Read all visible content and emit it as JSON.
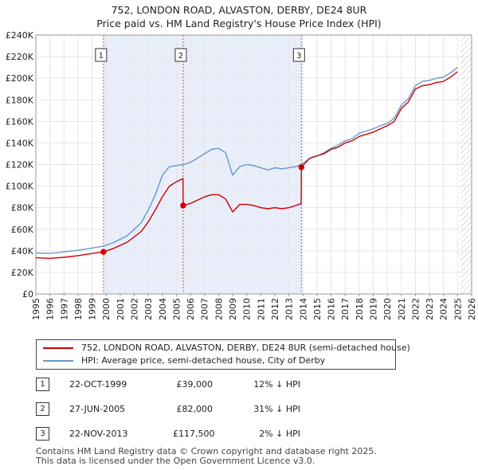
{
  "title": {
    "line1": "752, LONDON ROAD, ALVASTON, DERBY, DE24 8UR",
    "line2": "Price paid vs. HM Land Registry's House Price Index (HPI)"
  },
  "chart_data": {
    "type": "line",
    "title": "752, LONDON ROAD, ALVASTON, DERBY, DE24 8UR — Price paid vs. HM Land Registry's House Price Index (HPI)",
    "xlim": [
      1995,
      2026
    ],
    "ylim": [
      0,
      240000
    ],
    "y_ticks": [
      0,
      20000,
      40000,
      60000,
      80000,
      100000,
      120000,
      140000,
      160000,
      180000,
      200000,
      220000,
      240000
    ],
    "y_tick_labels": [
      "£0",
      "£20K",
      "£40K",
      "£60K",
      "£80K",
      "£100K",
      "£120K",
      "£140K",
      "£160K",
      "£180K",
      "£200K",
      "£220K",
      "£240K"
    ],
    "x_ticks": [
      1995,
      1996,
      1997,
      1998,
      1999,
      2000,
      2001,
      2002,
      2003,
      2004,
      2005,
      2006,
      2007,
      2008,
      2009,
      2010,
      2011,
      2012,
      2013,
      2014,
      2015,
      2016,
      2017,
      2018,
      2019,
      2020,
      2021,
      2022,
      2023,
      2024,
      2025,
      2026
    ],
    "x_tick_labels": [
      "1995",
      "1996",
      "1997",
      "1998",
      "1999",
      "2000",
      "2001",
      "2002",
      "2003",
      "2004",
      "2005",
      "2006",
      "2007",
      "2008",
      "2009",
      "2010",
      "2011",
      "2012",
      "2013",
      "2014",
      "2015",
      "2016",
      "2017",
      "2018",
      "2019",
      "2020",
      "2021",
      "2022",
      "2023",
      "2024",
      "2025",
      "2026"
    ],
    "grid": true,
    "forecast_start": 2025.2,
    "series": [
      {
        "name": "752, LONDON ROAD, ALVASTON, DERBY, DE24 8UR (semi-detached house)",
        "color": "#cc0000",
        "points": [
          [
            1995.0,
            33500
          ],
          [
            1996.0,
            33000
          ],
          [
            1997.0,
            34000
          ],
          [
            1998.0,
            35500
          ],
          [
            1999.0,
            37500
          ],
          [
            1999.81,
            39000
          ],
          [
            2000.5,
            42000
          ],
          [
            2001.5,
            48000
          ],
          [
            2002.5,
            58000
          ],
          [
            2003.0,
            67000
          ],
          [
            2003.5,
            78000
          ],
          [
            2004.0,
            90000
          ],
          [
            2004.5,
            100000
          ],
          [
            2005.0,
            104000
          ],
          [
            2005.47,
            107000
          ],
          [
            2005.48,
            82000
          ],
          [
            2006.0,
            84000
          ],
          [
            2006.5,
            87000
          ],
          [
            2007.0,
            90000
          ],
          [
            2007.5,
            92000
          ],
          [
            2008.0,
            92000
          ],
          [
            2008.5,
            88000
          ],
          [
            2009.0,
            76000
          ],
          [
            2009.5,
            83000
          ],
          [
            2010.0,
            83000
          ],
          [
            2010.5,
            82000
          ],
          [
            2011.0,
            80000
          ],
          [
            2011.5,
            79000
          ],
          [
            2012.0,
            80000
          ],
          [
            2012.5,
            79000
          ],
          [
            2013.0,
            80000
          ],
          [
            2013.5,
            82000
          ],
          [
            2013.88,
            84000
          ],
          [
            2013.89,
            117500
          ],
          [
            2014.5,
            126000
          ],
          [
            2015.0,
            128000
          ],
          [
            2015.5,
            130000
          ],
          [
            2016.0,
            134000
          ],
          [
            2016.5,
            136000
          ],
          [
            2017.0,
            140000
          ],
          [
            2017.5,
            142000
          ],
          [
            2018.0,
            146000
          ],
          [
            2018.5,
            148000
          ],
          [
            2019.0,
            150000
          ],
          [
            2019.5,
            153000
          ],
          [
            2020.0,
            156000
          ],
          [
            2020.5,
            160000
          ],
          [
            2021.0,
            172000
          ],
          [
            2021.5,
            178000
          ],
          [
            2022.0,
            190000
          ],
          [
            2022.5,
            193000
          ],
          [
            2023.0,
            194000
          ],
          [
            2023.5,
            196000
          ],
          [
            2024.0,
            197000
          ],
          [
            2024.5,
            201000
          ],
          [
            2025.0,
            206000
          ]
        ]
      },
      {
        "name": "HPI: Average price, semi-detached house, City of Derby",
        "color": "#6699cc",
        "points": [
          [
            1995.0,
            38000
          ],
          [
            1996.0,
            37500
          ],
          [
            1997.0,
            39000
          ],
          [
            1998.0,
            40500
          ],
          [
            1999.0,
            42500
          ],
          [
            1999.81,
            44300
          ],
          [
            2000.5,
            47500
          ],
          [
            2001.5,
            54000
          ],
          [
            2002.5,
            66000
          ],
          [
            2003.0,
            78000
          ],
          [
            2003.5,
            92000
          ],
          [
            2004.0,
            110000
          ],
          [
            2004.5,
            118000
          ],
          [
            2005.0,
            119000
          ],
          [
            2005.5,
            120000
          ],
          [
            2006.0,
            122000
          ],
          [
            2006.5,
            126000
          ],
          [
            2007.0,
            130000
          ],
          [
            2007.5,
            134000
          ],
          [
            2008.0,
            135000
          ],
          [
            2008.5,
            131000
          ],
          [
            2009.0,
            110000
          ],
          [
            2009.5,
            118000
          ],
          [
            2010.0,
            120000
          ],
          [
            2010.5,
            119000
          ],
          [
            2011.0,
            117000
          ],
          [
            2011.5,
            115000
          ],
          [
            2012.0,
            117000
          ],
          [
            2012.5,
            116000
          ],
          [
            2013.0,
            117000
          ],
          [
            2013.5,
            118000
          ],
          [
            2013.89,
            120000
          ],
          [
            2014.5,
            126000
          ],
          [
            2015.0,
            128000
          ],
          [
            2015.5,
            131000
          ],
          [
            2016.0,
            135000
          ],
          [
            2016.5,
            138000
          ],
          [
            2017.0,
            142000
          ],
          [
            2017.5,
            144000
          ],
          [
            2018.0,
            149000
          ],
          [
            2018.5,
            151000
          ],
          [
            2019.0,
            153000
          ],
          [
            2019.5,
            156000
          ],
          [
            2020.0,
            158000
          ],
          [
            2020.5,
            163000
          ],
          [
            2021.0,
            175000
          ],
          [
            2021.5,
            181000
          ],
          [
            2022.0,
            193000
          ],
          [
            2022.5,
            197000
          ],
          [
            2023.0,
            198000
          ],
          [
            2023.5,
            200000
          ],
          [
            2024.0,
            201000
          ],
          [
            2024.5,
            205000
          ],
          [
            2025.0,
            210000
          ]
        ]
      }
    ],
    "sales": [
      {
        "marker": "1",
        "x": 1999.81,
        "y": 39000,
        "date": "22-OCT-1999",
        "price": "£39,000",
        "hpi": "12% ↓ HPI"
      },
      {
        "marker": "2",
        "x": 2005.48,
        "y": 82000,
        "date": "27-JUN-2005",
        "price": "£82,000",
        "hpi": "31% ↓ HPI"
      },
      {
        "marker": "3",
        "x": 2013.89,
        "y": 117500,
        "date": "22-NOV-2013",
        "price": "£117,500",
        "hpi": "2% ↓ HPI"
      }
    ]
  },
  "legend": {
    "entries": [
      {
        "label": "752, LONDON ROAD, ALVASTON, DERBY, DE24 8UR (semi-detached house)",
        "color": "#cc0000"
      },
      {
        "label": "HPI: Average price, semi-detached house, City of Derby",
        "color": "#6699cc"
      }
    ]
  },
  "footer": {
    "line1": "Contains HM Land Registry data © Crown copyright and database right 2025.",
    "line2": "This data is licensed under the Open Government Licence v3.0."
  }
}
